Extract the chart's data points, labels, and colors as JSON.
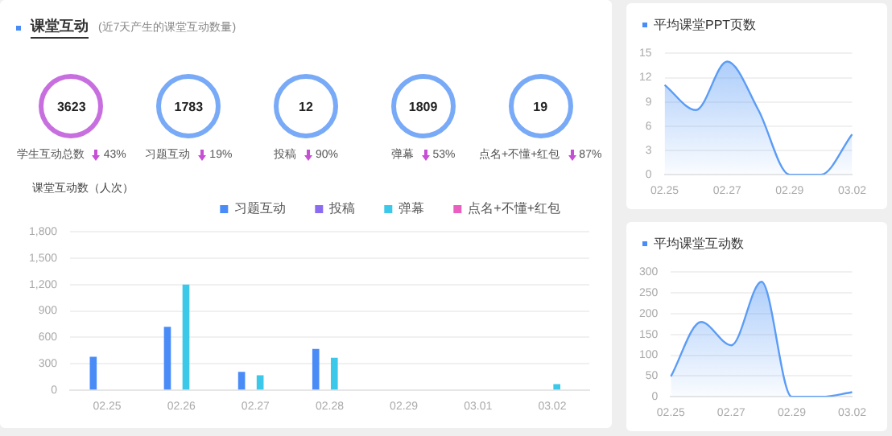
{
  "chart_data": [
    {
      "type": "other",
      "title": "课堂互动",
      "subtitle": "(近7天产生的课堂互动数量)",
      "categories": [
        "学生互动总数",
        "习题互动",
        "投稿",
        "弹幕",
        "点名+不懂+红包"
      ],
      "values": [
        3623,
        1783,
        12,
        1809,
        19
      ],
      "data_labels": true,
      "annotations": [
        "43%",
        "19%",
        "90%",
        "53%",
        "87%"
      ]
    },
    {
      "type": "bar",
      "ylabel": "课堂互动数（人次）",
      "categories": [
        "02.25",
        "02.26",
        "02.27",
        "02.28",
        "02.29",
        "03.01",
        "03.02"
      ],
      "series": [
        {
          "name": "习题互动",
          "color": "#4a8cf7",
          "values": [
            380,
            720,
            210,
            470,
            0,
            0,
            0
          ]
        },
        {
          "name": "投稿",
          "color": "#8b6cf0",
          "values": [
            0,
            null,
            0,
            0,
            0,
            0,
            0
          ]
        },
        {
          "name": "弹幕",
          "color": "#3cc8e8",
          "values": [
            0,
            1200,
            170,
            370,
            0,
            0,
            70
          ]
        },
        {
          "name": "点名+不懂+红包",
          "color": "#e85fc0",
          "values": [
            null,
            null,
            0,
            0,
            0,
            0,
            0
          ]
        }
      ],
      "ylim": [
        0,
        1800
      ],
      "yticks": [
        0,
        300,
        600,
        900,
        {
          "value": 1200,
          "label": "1,200"
        },
        {
          "value": 1500,
          "label": "1,500"
        },
        {
          "value": 1800,
          "label": "1,800"
        }
      ],
      "grid": "y",
      "legend": "top right"
    },
    {
      "type": "area",
      "title": "平均课堂PPT页数",
      "categories": [
        "02.25",
        null,
        "02.27",
        null,
        "02.29",
        null,
        "03.02"
      ],
      "values": [
        11.1,
        8,
        14,
        8,
        0,
        0,
        5
      ],
      "color": "#5b9cf6",
      "ylim": [
        0,
        15
      ],
      "yticks": [
        0,
        3,
        6,
        9,
        12,
        15
      ],
      "grid": "y"
    },
    {
      "type": "area",
      "title": "平均课堂互动数",
      "categories": [
        "02.25",
        null,
        "02.27",
        null,
        "02.29",
        null,
        "03.02"
      ],
      "values": [
        49,
        180,
        124,
        277,
        0,
        0,
        11
      ],
      "color": "#5b9cf6",
      "ylim": [
        0,
        300
      ],
      "yticks": [
        0,
        50,
        100,
        150,
        200,
        250,
        300
      ],
      "grid": "y"
    }
  ]
}
